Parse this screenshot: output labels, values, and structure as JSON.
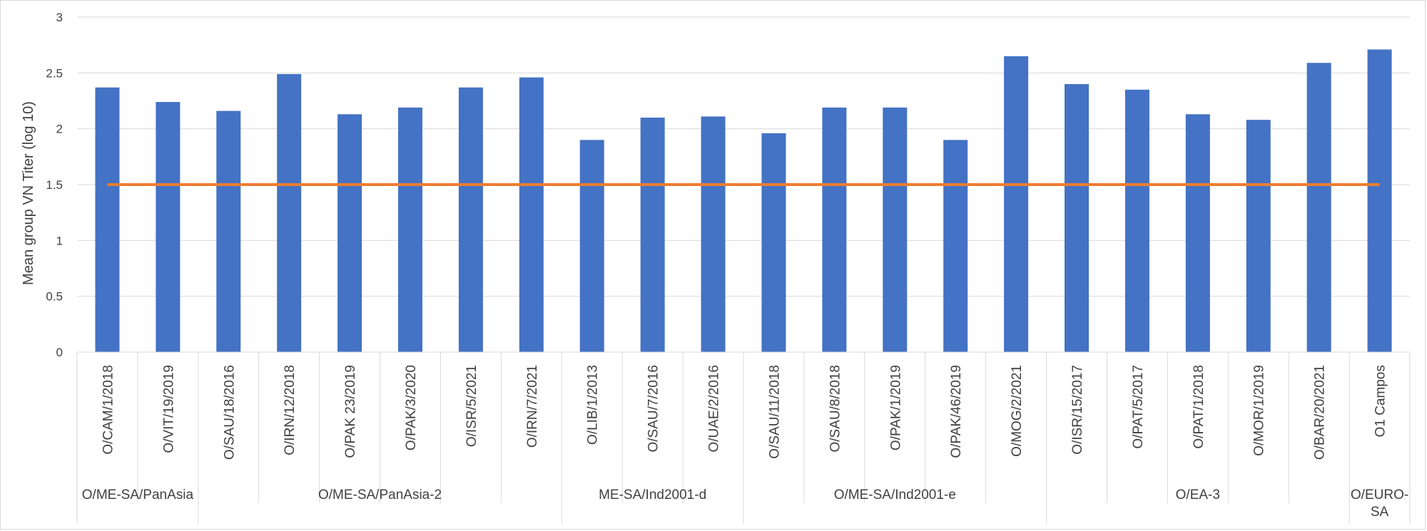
{
  "chart_data": {
    "type": "bar",
    "ylabel": "Mean group VN Titer (log 10)",
    "ylim": [
      0,
      3
    ],
    "yticks": [
      0,
      0.5,
      1,
      1.5,
      2,
      2.5,
      3
    ],
    "ytick_labels": [
      "0",
      "0.5",
      "1",
      "1.5",
      "2",
      "2.5",
      "3"
    ],
    "grid": "horizontal",
    "bar_color": "#4472C4",
    "line_color": "#ED7D31",
    "categories": [
      "O/CAM/1/2018",
      "O/VIT/19/2019",
      "O/SAU/18/2016",
      "O/IRN/12/2018",
      "O/PAK 23/2019",
      "O/PAK/3/2020",
      "O/ISR/5/2021",
      "O/IRN/7/2021",
      "O/LIB/1/2013",
      "O/SAU/7/2016",
      "O/UAE/2/2016",
      "O/SAU/11/2018",
      "O/SAU/8/2018",
      "O/PAK/1/2019",
      "O/PAK/46/2019",
      "O/MOG/2/2021",
      "O/ISR/15/2017",
      "O/PAT/5/2017",
      "O/PAT/1/2018",
      "O/MOR/1/2019",
      "O/BAR/20/2021",
      "O1 Campos"
    ],
    "series": [
      {
        "type": "bar",
        "values": [
          2.37,
          2.24,
          2.16,
          2.49,
          2.13,
          2.19,
          2.37,
          2.46,
          1.9,
          2.1,
          2.11,
          1.96,
          2.19,
          2.19,
          1.9,
          2.65,
          2.4,
          2.35,
          2.13,
          2.08,
          2.59,
          2.71
        ]
      },
      {
        "type": "line",
        "values": [
          1.5,
          1.5,
          1.5,
          1.5,
          1.5,
          1.5,
          1.5,
          1.5,
          1.5,
          1.5,
          1.5,
          1.5,
          1.5,
          1.5,
          1.5,
          1.5,
          1.5,
          1.5,
          1.5,
          1.5,
          1.5,
          1.5
        ]
      }
    ],
    "groups": [
      {
        "label": "O/ME-SA/PanAsia",
        "start": 0,
        "count": 2
      },
      {
        "label": "O/ME-SA/PanAsia-2",
        "start": 2,
        "count": 6
      },
      {
        "label": "ME-SA/Ind2001-d",
        "start": 8,
        "count": 3
      },
      {
        "label": "O/ME-SA/Ind2001-e",
        "start": 11,
        "count": 5
      },
      {
        "label": "O/EA-3",
        "start": 16,
        "count": 5
      },
      {
        "label": "O/EURO-SA",
        "start": 21,
        "count": 1,
        "lines": [
          "O/EURO-",
          "SA"
        ]
      }
    ]
  }
}
